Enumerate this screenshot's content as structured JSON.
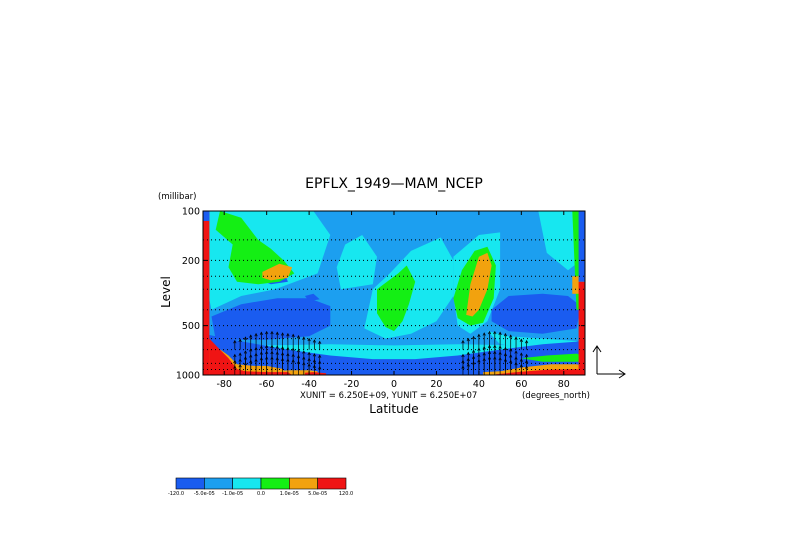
{
  "chart_data": {
    "type": "heatmap",
    "title": "EPFLX_1949—MAM_NCEP",
    "xlabel": "Latitude",
    "ylabel": "Level",
    "y_unit_label": "(millibar)",
    "x_unit_label": "(degrees_north)",
    "vector_scale_label": "XUNIT = 6.250E+09, YUNIT = 6.250E+07",
    "xlim": [
      -90,
      90
    ],
    "ylim": [
      1000,
      100
    ],
    "y_scale": "log",
    "x_ticks": [
      {
        "value": -80,
        "label": "-80"
      },
      {
        "value": -60,
        "label": "-60"
      },
      {
        "value": -40,
        "label": "-40"
      },
      {
        "value": -20,
        "label": "-20"
      },
      {
        "value": 0,
        "label": "0"
      },
      {
        "value": 20,
        "label": "20"
      },
      {
        "value": 40,
        "label": "40"
      },
      {
        "value": 60,
        "label": "60"
      },
      {
        "value": 80,
        "label": "80"
      }
    ],
    "y_ticks": [
      {
        "value": 100,
        "label": "100"
      },
      {
        "value": 200,
        "label": "200"
      },
      {
        "value": 500,
        "label": "500"
      },
      {
        "value": 1000,
        "label": "1000"
      }
    ],
    "pressure_levels": [
      100,
      150,
      200,
      250,
      300,
      400,
      500,
      600,
      700,
      850,
      925,
      1000
    ],
    "grid": "dotted horizontal lines at pressure levels",
    "colorbar": {
      "placement": "bottom-left",
      "colors": [
        "#1a5cf0",
        "#1c9ff0",
        "#17e7f0",
        "#14ef14",
        "#f2a20e",
        "#f01414"
      ],
      "labels": [
        "-120.0",
        "-5.0e-05",
        "-1.0e-05",
        "0.0",
        "1.0e-05",
        "5.0e-05",
        "120.0"
      ]
    },
    "regions": [
      {
        "color": "#1c9ff0",
        "points": [
          [
            -90,
            100
          ],
          [
            90,
            100
          ],
          [
            90,
            1000
          ],
          [
            -90,
            1000
          ]
        ]
      },
      {
        "color": "#17e7f0",
        "points": [
          [
            -88,
            100
          ],
          [
            -38,
            100
          ],
          [
            -30,
            140
          ],
          [
            -36,
            240
          ],
          [
            -56,
            300
          ],
          [
            -72,
            330
          ],
          [
            -86,
            400
          ],
          [
            -88,
            300
          ]
        ]
      },
      {
        "color": "#17e7f0",
        "points": [
          [
            -23,
            160
          ],
          [
            -15,
            140
          ],
          [
            -8,
            190
          ],
          [
            -10,
            280
          ],
          [
            -25,
            300
          ],
          [
            -27,
            220
          ]
        ]
      },
      {
        "color": "#17e7f0",
        "points": [
          [
            -10,
            300
          ],
          [
            -2,
            240
          ],
          [
            8,
            175
          ],
          [
            22,
            145
          ],
          [
            28,
            200
          ],
          [
            28,
            330
          ],
          [
            20,
            470
          ],
          [
            8,
            560
          ],
          [
            -4,
            600
          ],
          [
            -14,
            520
          ]
        ]
      },
      {
        "color": "#17e7f0",
        "points": [
          [
            28,
            190
          ],
          [
            40,
            140
          ],
          [
            50,
            135
          ],
          [
            50,
            300
          ],
          [
            44,
            470
          ],
          [
            36,
            560
          ],
          [
            30,
            500
          ],
          [
            28,
            330
          ]
        ]
      },
      {
        "color": "#17e7f0",
        "points": [
          [
            44,
            540
          ],
          [
            54,
            580
          ],
          [
            70,
            600
          ],
          [
            86,
            620
          ],
          [
            88,
            700
          ],
          [
            70,
            700
          ],
          [
            50,
            650
          ]
        ]
      },
      {
        "color": "#17e7f0",
        "points": [
          [
            68,
            100
          ],
          [
            86,
            100
          ],
          [
            88,
            200
          ],
          [
            82,
            230
          ],
          [
            72,
            180
          ]
        ]
      },
      {
        "color": "#17e7f0",
        "points": [
          [
            -90,
            650
          ],
          [
            -60,
            660
          ],
          [
            -30,
            650
          ],
          [
            0,
            660
          ],
          [
            30,
            650
          ],
          [
            60,
            660
          ],
          [
            90,
            650
          ],
          [
            90,
            1000
          ],
          [
            -90,
            1000
          ]
        ]
      },
      {
        "color": "#1a5cf0",
        "points": [
          [
            -86,
            440
          ],
          [
            -72,
            370
          ],
          [
            -55,
            340
          ],
          [
            -40,
            340
          ],
          [
            -30,
            380
          ],
          [
            -30,
            500
          ],
          [
            -40,
            580
          ],
          [
            -60,
            610
          ],
          [
            -84,
            610
          ]
        ]
      },
      {
        "color": "#1a5cf0",
        "points": [
          [
            -90,
            560
          ],
          [
            -70,
            630
          ],
          [
            -50,
            700
          ],
          [
            -30,
            760
          ],
          [
            -10,
            800
          ],
          [
            10,
            800
          ],
          [
            30,
            760
          ],
          [
            50,
            700
          ],
          [
            70,
            650
          ],
          [
            90,
            620
          ],
          [
            90,
            1000
          ],
          [
            -90,
            1000
          ]
        ]
      },
      {
        "color": "#1a5cf0",
        "points": [
          [
            46,
            400
          ],
          [
            54,
            330
          ],
          [
            70,
            320
          ],
          [
            82,
            330
          ],
          [
            88,
            380
          ],
          [
            86,
            520
          ],
          [
            70,
            560
          ],
          [
            54,
            540
          ],
          [
            46,
            470
          ]
        ]
      },
      {
        "color": "#1a5cf0",
        "points": [
          [
            -62,
            220
          ],
          [
            -52,
            230
          ],
          [
            -50,
            270
          ],
          [
            -58,
            280
          ],
          [
            -64,
            260
          ]
        ]
      },
      {
        "color": "#1a5cf0",
        "points": [
          [
            -42,
            330
          ],
          [
            -38,
            320
          ],
          [
            -35,
            345
          ],
          [
            -40,
            355
          ]
        ]
      },
      {
        "color": "#14ef14",
        "points": [
          [
            -82,
            100
          ],
          [
            -72,
            110
          ],
          [
            -64,
            150
          ],
          [
            -58,
            170
          ],
          [
            -52,
            200
          ],
          [
            -47,
            240
          ],
          [
            -54,
            270
          ],
          [
            -64,
            280
          ],
          [
            -74,
            270
          ],
          [
            -78,
            220
          ],
          [
            -76,
            160
          ],
          [
            -84,
            130
          ]
        ]
      },
      {
        "color": "#14ef14",
        "points": [
          [
            -8,
            300
          ],
          [
            2,
            240
          ],
          [
            6,
            215
          ],
          [
            10,
            270
          ],
          [
            7,
            370
          ],
          [
            4,
            470
          ],
          [
            0,
            540
          ],
          [
            -4,
            510
          ],
          [
            -8,
            420
          ]
        ]
      },
      {
        "color": "#14ef14",
        "points": [
          [
            28,
            340
          ],
          [
            32,
            230
          ],
          [
            38,
            175
          ],
          [
            44,
            165
          ],
          [
            48,
            215
          ],
          [
            47,
            340
          ],
          [
            42,
            480
          ],
          [
            36,
            500
          ],
          [
            30,
            450
          ]
        ]
      },
      {
        "color": "#14ef14",
        "points": [
          [
            84,
            100
          ],
          [
            90,
            100
          ],
          [
            90,
            400
          ],
          [
            86,
            400
          ]
        ]
      },
      {
        "color": "#14ef14",
        "points": [
          [
            60,
            790
          ],
          [
            72,
            760
          ],
          [
            86,
            740
          ],
          [
            90,
            770
          ],
          [
            90,
            830
          ],
          [
            70,
            830
          ]
        ]
      },
      {
        "color": "#f2a20e",
        "points": [
          [
            -62,
            235
          ],
          [
            -54,
            210
          ],
          [
            -48,
            220
          ],
          [
            -50,
            255
          ],
          [
            -58,
            265
          ],
          [
            -62,
            255
          ]
        ]
      },
      {
        "color": "#f2a20e",
        "points": [
          [
            34,
            430
          ],
          [
            36,
            280
          ],
          [
            40,
            190
          ],
          [
            44,
            180
          ],
          [
            46,
            215
          ],
          [
            44,
            300
          ],
          [
            40,
            400
          ],
          [
            37,
            440
          ]
        ]
      },
      {
        "color": "#f2a20e",
        "points": [
          [
            84,
            250
          ],
          [
            90,
            250
          ],
          [
            90,
            320
          ],
          [
            84,
            320
          ]
        ]
      },
      {
        "color": "#f2a20e",
        "points": [
          [
            -90,
            540
          ],
          [
            -86,
            640
          ],
          [
            -78,
            760
          ],
          [
            -74,
            860
          ],
          [
            -66,
            880
          ],
          [
            -60,
            880
          ],
          [
            -52,
            920
          ],
          [
            -52,
            1000
          ],
          [
            -90,
            1000
          ]
        ]
      },
      {
        "color": "#f2a20e",
        "points": [
          [
            -56,
            950
          ],
          [
            -50,
            935
          ],
          [
            -40,
            935
          ],
          [
            -36,
            950
          ],
          [
            -36,
            1000
          ],
          [
            -56,
            1000
          ]
        ]
      },
      {
        "color": "#f2a20e",
        "points": [
          [
            42,
            960
          ],
          [
            50,
            950
          ],
          [
            60,
            900
          ],
          [
            74,
            860
          ],
          [
            86,
            860
          ],
          [
            90,
            880
          ],
          [
            90,
            1000
          ],
          [
            42,
            1000
          ]
        ]
      },
      {
        "color": "#f01414",
        "points": [
          [
            -90,
            100
          ],
          [
            -87,
            100
          ],
          [
            -87,
            1000
          ],
          [
            -90,
            1000
          ]
        ]
      },
      {
        "color": "#f01414",
        "points": [
          [
            -87,
            600
          ],
          [
            -83,
            680
          ],
          [
            -78,
            790
          ],
          [
            -74,
            920
          ],
          [
            -70,
            950
          ],
          [
            -60,
            960
          ],
          [
            -50,
            960
          ],
          [
            -48,
            1000
          ],
          [
            -87,
            1000
          ]
        ]
      },
      {
        "color": "#f01414",
        "points": [
          [
            -42,
            970
          ],
          [
            -38,
            960
          ],
          [
            -32,
            975
          ],
          [
            -32,
            1000
          ],
          [
            -42,
            1000
          ]
        ]
      },
      {
        "color": "#f01414",
        "points": [
          [
            48,
            990
          ],
          [
            58,
            960
          ],
          [
            72,
            930
          ],
          [
            86,
            920
          ],
          [
            90,
            940
          ],
          [
            90,
            1000
          ],
          [
            48,
            1000
          ]
        ]
      },
      {
        "color": "#f01414",
        "points": [
          [
            87,
            270
          ],
          [
            90,
            270
          ],
          [
            90,
            1000
          ],
          [
            87,
            1000
          ]
        ]
      },
      {
        "color": "#1a5cf0",
        "points": [
          [
            -90,
            100
          ],
          [
            -87,
            100
          ],
          [
            -87,
            115
          ],
          [
            -90,
            115
          ]
        ]
      },
      {
        "color": "#1a5cf0",
        "points": [
          [
            87,
            100
          ],
          [
            90,
            100
          ],
          [
            90,
            270
          ],
          [
            87,
            270
          ]
        ]
      }
    ],
    "vector_columns": [
      {
        "lat": -75,
        "len": 0.35
      },
      {
        "lat": -72.5,
        "len": 0.45
      },
      {
        "lat": -70,
        "len": 0.6
      },
      {
        "lat": -67.5,
        "len": 0.75
      },
      {
        "lat": -65,
        "len": 0.85
      },
      {
        "lat": -62.5,
        "len": 0.95
      },
      {
        "lat": -60,
        "len": 1.0
      },
      {
        "lat": -57.5,
        "len": 1.0
      },
      {
        "lat": -55,
        "len": 0.95
      },
      {
        "lat": -52.5,
        "len": 0.9
      },
      {
        "lat": -50,
        "len": 0.85
      },
      {
        "lat": -47.5,
        "len": 0.8
      },
      {
        "lat": -45,
        "len": 0.7
      },
      {
        "lat": -42.5,
        "len": 0.6
      },
      {
        "lat": -40,
        "len": 0.5
      },
      {
        "lat": -37.5,
        "len": 0.4
      },
      {
        "lat": -35,
        "len": 0.3
      },
      {
        "lat": 32.5,
        "len": 0.35
      },
      {
        "lat": 35,
        "len": 0.5
      },
      {
        "lat": 37.5,
        "len": 0.65
      },
      {
        "lat": 40,
        "len": 0.8
      },
      {
        "lat": 42.5,
        "len": 0.9
      },
      {
        "lat": 45,
        "len": 1.0
      },
      {
        "lat": 47.5,
        "len": 1.0
      },
      {
        "lat": 50,
        "len": 0.95
      },
      {
        "lat": 52.5,
        "len": 0.85
      },
      {
        "lat": 55,
        "len": 0.75
      },
      {
        "lat": 57.5,
        "len": 0.6
      },
      {
        "lat": 60,
        "len": 0.45
      },
      {
        "lat": 62.5,
        "len": 0.35
      }
    ]
  }
}
